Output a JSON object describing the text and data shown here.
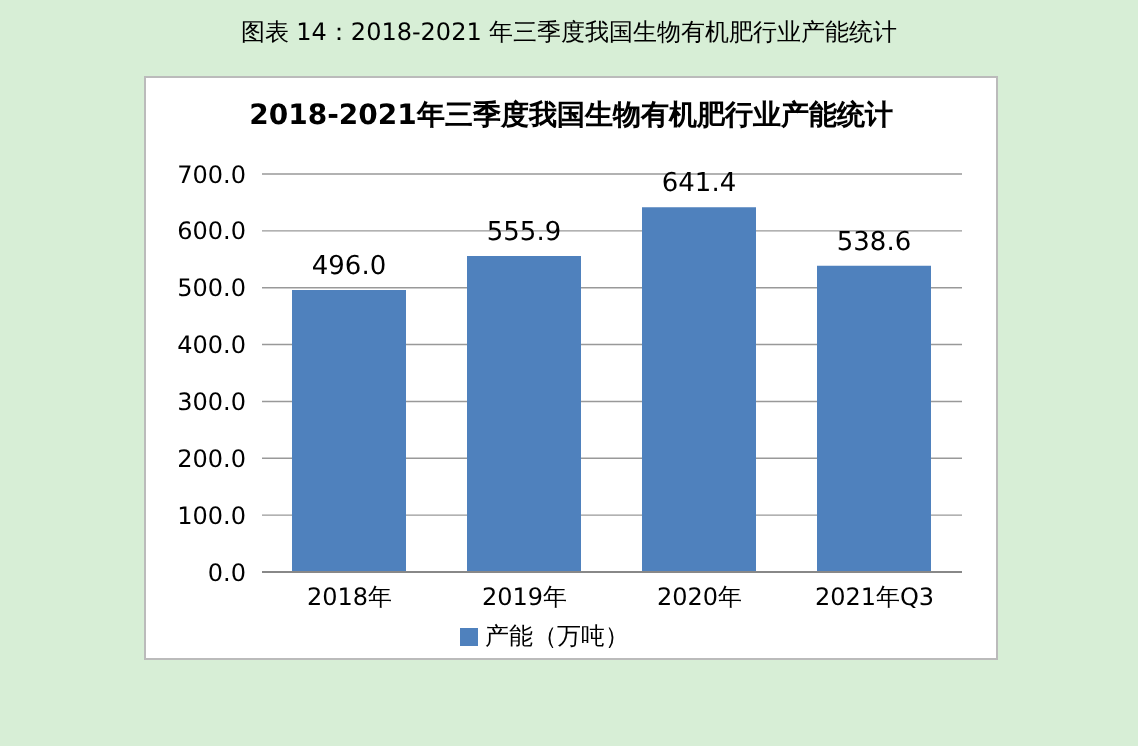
{
  "chart_data": {
    "type": "bar",
    "title": "图表 14：2018-2021 年三季度我国生物有机肥行业产能统计",
    "subtitle": "2018-2021年三季度我国生物有机肥行业产能统计",
    "categories": [
      "2018年",
      "2019年",
      "2020年",
      "2021年Q3"
    ],
    "series": [
      {
        "name": "产能（万吨）",
        "color": "#4f81bd",
        "values": [
          496.0,
          555.9,
          641.4,
          538.6
        ],
        "value_labels": [
          "496.0",
          "555.9",
          "641.4",
          "538.6"
        ]
      }
    ],
    "ylim": [
      0,
      700
    ],
    "yticks": [
      {
        "value": 0,
        "label": "0.0"
      },
      {
        "value": 100,
        "label": "100.0"
      },
      {
        "value": 200,
        "label": "200.0"
      },
      {
        "value": 300,
        "label": "300.0"
      },
      {
        "value": 400,
        "label": "400.0"
      },
      {
        "value": 500,
        "label": "500.0"
      },
      {
        "value": 600,
        "label": "600.0"
      },
      {
        "value": 700,
        "label": "700.0"
      }
    ],
    "grid": "y",
    "legend": "bottom"
  }
}
